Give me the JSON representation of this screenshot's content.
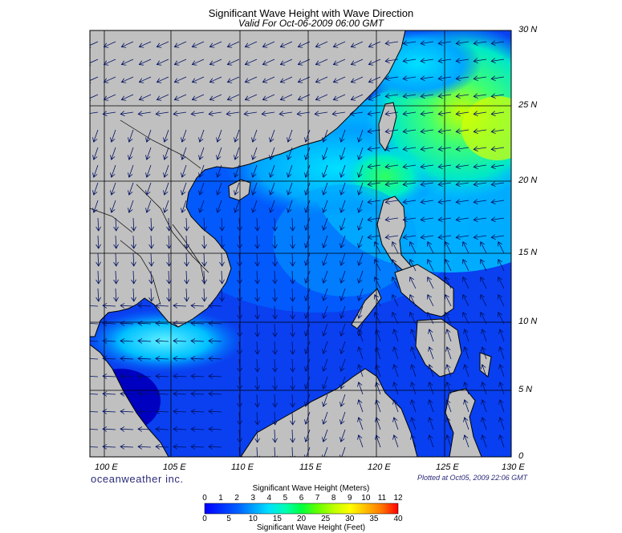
{
  "title": "Significant Wave Height with Wave Direction",
  "subtitle": "Valid For Oct-06-2009 06:00 GMT",
  "brand": "oceanweather inc.",
  "plotted": "Plotted at Oct05, 2009 22:06 GMT",
  "lat_labels": [
    "30 N",
    "25 N",
    "20 N",
    "15 N",
    "10 N",
    "5 N",
    "0"
  ],
  "lon_labels": [
    "100 E",
    "105 E",
    "110 E",
    "115 E",
    "120 E",
    "125 E",
    "130 E"
  ],
  "colorbar": {
    "title_meters": "Significant Wave Height (Meters)",
    "title_feet": "Significant Wave Height (Feet)",
    "meters_ticks": [
      "0",
      "1",
      "2",
      "3",
      "4",
      "5",
      "6",
      "7",
      "8",
      "9",
      "10",
      "11",
      "12"
    ],
    "feet_ticks": [
      "0",
      "5",
      "10",
      "15",
      "20",
      "25",
      "30",
      "35",
      "40"
    ],
    "colors": [
      "#0000ff",
      "#0040ff",
      "#0090ff",
      "#00d8ff",
      "#00ff90",
      "#00ff00",
      "#a0ff00",
      "#ffff00",
      "#ffb000",
      "#ff5000",
      "#ff0000"
    ]
  },
  "map": {
    "lon_range": [
      99,
      130
    ],
    "lat_range": [
      0,
      30
    ],
    "land_color": "#c0c0c0",
    "wave_height_scale": "0-12 m"
  }
}
